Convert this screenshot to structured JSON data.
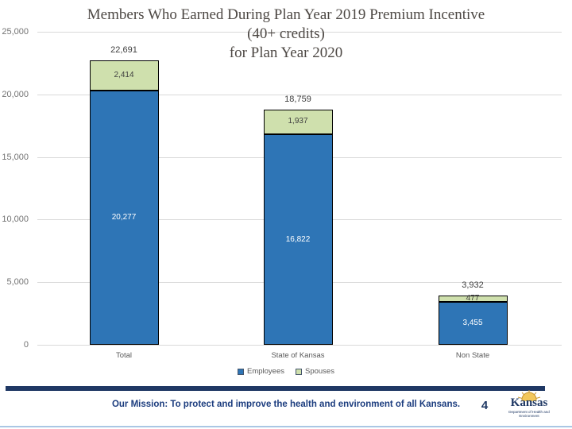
{
  "title": {
    "line1": "Members Who Earned During Plan Year 2019 Premium Incentive",
    "line2": "(40+ credits)",
    "line3": "for Plan Year 2020"
  },
  "chart_data": {
    "type": "bar",
    "stacked": true,
    "title": "Members Who Earned During Plan Year 2019 Premium Incentive (40+ credits) for Plan Year 2020",
    "categories": [
      "Total",
      "State of Kansas",
      "Non State"
    ],
    "series": [
      {
        "name": "Employees",
        "color": "#2e75b6",
        "label_color": "#ffffff",
        "values": [
          20277,
          16822,
          3455
        ],
        "labels": [
          "20,277",
          "16,822",
          "3,455"
        ]
      },
      {
        "name": "Spouses",
        "color": "#cfe0ad",
        "label_color": "#404040",
        "values": [
          2414,
          1937,
          477
        ],
        "labels": [
          "2,414",
          "1,937",
          "477"
        ]
      }
    ],
    "totals": [
      22691,
      18759,
      3932
    ],
    "total_labels": [
      "22,691",
      "18,759",
      "3,932"
    ],
    "ylim": [
      0,
      25000
    ],
    "yticks": [
      {
        "value": 0,
        "label": "0"
      },
      {
        "value": 5000,
        "label": "5,000"
      },
      {
        "value": 10000,
        "label": "10,000"
      },
      {
        "value": 15000,
        "label": "15,000"
      },
      {
        "value": 20000,
        "label": "20,000"
      },
      {
        "value": 25000,
        "label": "25,000"
      }
    ],
    "grid": true,
    "legend_position": "bottom"
  },
  "footer": {
    "mission": "Our Mission: To protect and improve the health and environment of all Kansans.",
    "page_number": "4"
  },
  "logo": {
    "name": "Kansas",
    "subtext": "Department of Health and Environment"
  },
  "colors": {
    "employees": "#2e75b6",
    "spouses": "#cfe0ad",
    "bar_border": "#000000",
    "gridline": "#d9d9d9",
    "axis_text": "#737373",
    "category_text": "#595959",
    "title_text": "#4d4844",
    "footer_bar": "#1f3864",
    "mission_text": "#1b3c7e",
    "bottom_line": "#aac7e4"
  }
}
